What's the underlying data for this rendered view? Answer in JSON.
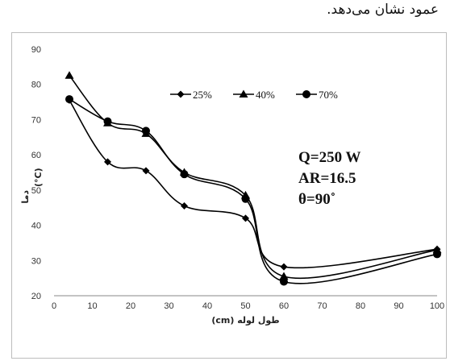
{
  "caption": "عمود نشان می‌دهد.",
  "chart_data": {
    "type": "line",
    "title": "",
    "xlabel": "طول لوله (cm)",
    "ylabel_top": "دما",
    "ylabel_bottom": "(°C)",
    "xlim": [
      0,
      100
    ],
    "ylim": [
      20,
      90
    ],
    "xticks": [
      0,
      10,
      20,
      30,
      40,
      50,
      60,
      70,
      80,
      90,
      100
    ],
    "yticks": [
      20,
      30,
      40,
      50,
      60,
      70,
      80,
      90
    ],
    "grid": false,
    "legend_position": "top-center",
    "annotations": [
      "Q=250  W",
      "AR=16.5",
      "θ=90˚"
    ],
    "series": [
      {
        "name": "25%",
        "marker": "diamond",
        "x": [
          4,
          14,
          24,
          34,
          50,
          60,
          100
        ],
        "y": [
          75.5,
          58,
          55.5,
          45.5,
          42,
          28.2,
          33.2
        ]
      },
      {
        "name": "40%",
        "marker": "triangle",
        "x": [
          4,
          14,
          24,
          34,
          50,
          60,
          100
        ],
        "y": [
          82.5,
          69,
          66,
          55,
          48.5,
          25.5,
          33
        ]
      },
      {
        "name": "70%",
        "marker": "circle",
        "x": [
          4,
          14,
          24,
          34,
          50,
          60,
          100
        ],
        "y": [
          75.8,
          69.5,
          66.8,
          54.5,
          47.5,
          24,
          31.8
        ]
      }
    ],
    "line_color": "#000000"
  }
}
